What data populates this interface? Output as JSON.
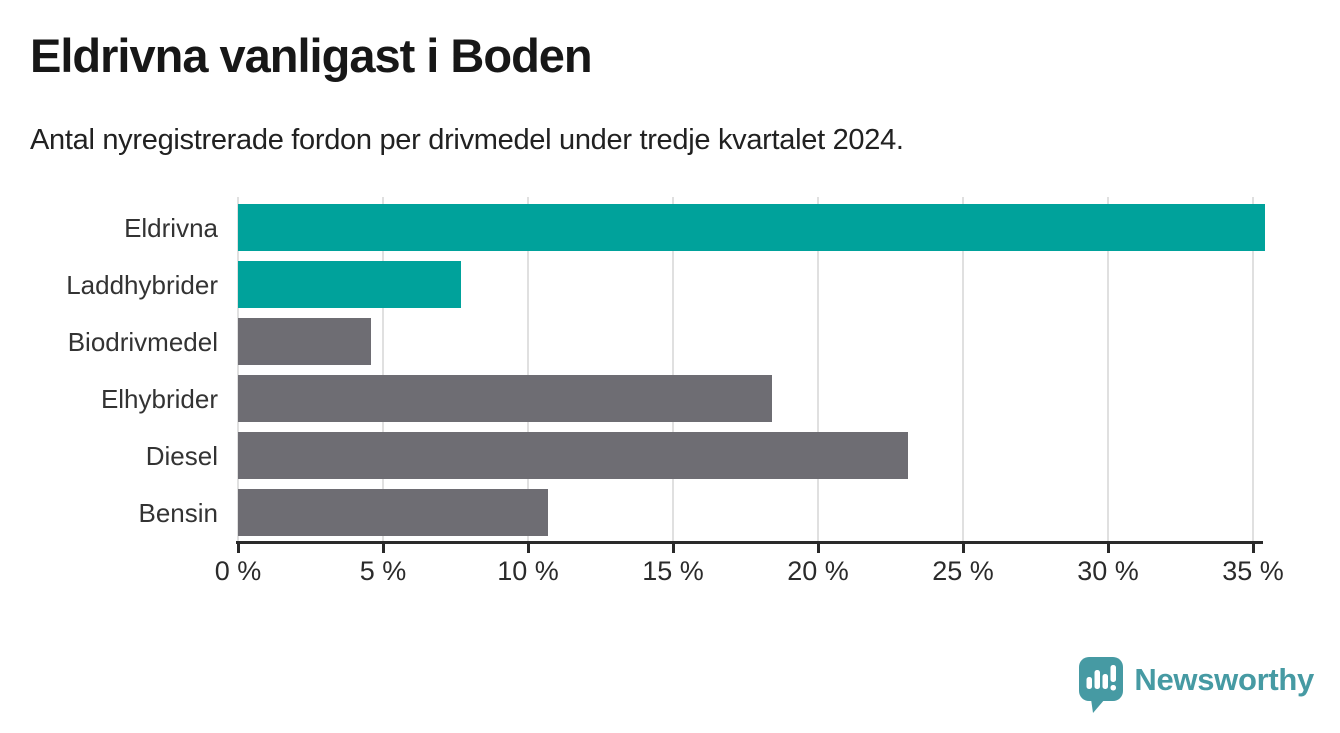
{
  "header": {
    "title": "Eldrivna vanligast i Boden",
    "subtitle": "Antal nyregistrerade fordon per drivmedel under tredje kvartalet 2024."
  },
  "chart_data": {
    "type": "bar",
    "orientation": "horizontal",
    "categories": [
      "Eldrivna",
      "Laddhybrider",
      "Biodrivmedel",
      "Elhybrider",
      "Diesel",
      "Bensin"
    ],
    "values": [
      35.4,
      7.7,
      4.6,
      18.4,
      23.1,
      10.7
    ],
    "unit": "%",
    "bar_colors": [
      "#00a29b",
      "#00a29b",
      "#6e6d73",
      "#6e6d73",
      "#6e6d73",
      "#6e6d73"
    ],
    "highlight_color": "#00a29b",
    "base_color": "#6e6d73",
    "x_ticks": [
      0,
      5,
      10,
      15,
      20,
      25,
      30,
      35
    ],
    "x_tick_labels": [
      "0 %",
      "5 %",
      "10 %",
      "15 %",
      "20 %",
      "25 %",
      "30 %",
      "35 %"
    ],
    "xlim": [
      0,
      35
    ],
    "grid": true,
    "gridline_color": "#e0e0e0",
    "axis_color": "#2a2a2a",
    "label_color": "#333333",
    "title": "Eldrivna vanligast i Boden",
    "subtitle": "Antal nyregistrerade fordon per drivmedel under tredje kvartalet 2024.",
    "xlabel": "",
    "ylabel": "",
    "legend": "none"
  },
  "footer": {
    "brand_name": "Newsworthy",
    "brand_color": "#469aa3",
    "logo_icon": "speech-bubble-bar-chart-icon"
  }
}
